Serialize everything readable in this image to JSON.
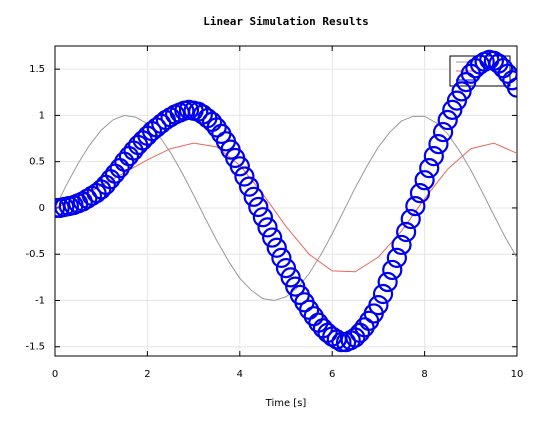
{
  "chart_data": {
    "type": "line",
    "title": "Linear Simulation Results",
    "x_label": "Time [s]",
    "xlim": [
      0,
      10
    ],
    "xticks": [
      0,
      2,
      4,
      6,
      8,
      10
    ],
    "ylim": [
      -1.6,
      1.75
    ],
    "yticks": [
      -1.5,
      -1,
      -0.5,
      0,
      0.5,
      1,
      1.5
    ],
    "grid": true,
    "series": [
      {
        "color": "#999999",
        "marker": "none",
        "x": [
          0,
          0.25,
          0.5,
          0.75,
          1,
          1.25,
          1.5,
          1.75,
          2,
          2.25,
          2.5,
          2.75,
          3,
          3.25,
          3.5,
          3.75,
          4,
          4.25,
          4.5,
          4.75,
          5,
          5.25,
          5.5,
          5.75,
          6,
          6.25,
          6.5,
          6.75,
          7,
          7.25,
          7.5,
          7.75,
          8,
          8.25,
          8.5,
          8.75,
          9,
          9.25,
          9.5,
          9.75,
          10
        ],
        "values": [
          0,
          0.25,
          0.48,
          0.68,
          0.84,
          0.95,
          1.0,
          0.98,
          0.91,
          0.78,
          0.6,
          0.38,
          0.14,
          -0.11,
          -0.35,
          -0.57,
          -0.76,
          -0.89,
          -0.98,
          -1.0,
          -0.96,
          -0.86,
          -0.71,
          -0.51,
          -0.28,
          -0.03,
          0.22,
          0.45,
          0.66,
          0.82,
          0.94,
          0.99,
          0.99,
          0.92,
          0.8,
          0.62,
          0.41,
          0.17,
          -0.08,
          -0.32,
          -0.54
        ]
      },
      {
        "color": "#e8675f",
        "marker": "none",
        "x": [
          0,
          0.5,
          1,
          1.5,
          2,
          2.5,
          3,
          3.5,
          4,
          4.5,
          5,
          5.5,
          6,
          6.5,
          7,
          7.5,
          8,
          8.5,
          9,
          9.5,
          10
        ],
        "values": [
          0,
          0.1,
          0.24,
          0.38,
          0.52,
          0.64,
          0.7,
          0.66,
          0.46,
          0.15,
          -0.2,
          -0.5,
          -0.68,
          -0.69,
          -0.53,
          -0.25,
          0.1,
          0.42,
          0.64,
          0.7,
          0.59
        ]
      },
      {
        "color": "#0000ee",
        "marker": "circle",
        "x": [
          0,
          0.1,
          0.2,
          0.3,
          0.4,
          0.5,
          0.6,
          0.7,
          0.8,
          0.9,
          1,
          1.1,
          1.2,
          1.3,
          1.4,
          1.5,
          1.6,
          1.7,
          1.8,
          1.9,
          2,
          2.1,
          2.2,
          2.3,
          2.4,
          2.5,
          2.6,
          2.7,
          2.8,
          2.9,
          3,
          3.1,
          3.2,
          3.3,
          3.4,
          3.5,
          3.6,
          3.7,
          3.8,
          3.9,
          4,
          4.1,
          4.2,
          4.3,
          4.4,
          4.5,
          4.6,
          4.7,
          4.8,
          4.9,
          5,
          5.1,
          5.2,
          5.3,
          5.4,
          5.5,
          5.6,
          5.7,
          5.8,
          5.9,
          6,
          6.1,
          6.2,
          6.3,
          6.4,
          6.5,
          6.6,
          6.7,
          6.8,
          6.9,
          7,
          7.1,
          7.2,
          7.3,
          7.4,
          7.5,
          7.6,
          7.7,
          7.8,
          7.9,
          8,
          8.1,
          8.2,
          8.3,
          8.4,
          8.5,
          8.6,
          8.7,
          8.8,
          8.9,
          9,
          9.1,
          9.2,
          9.3,
          9.4,
          9.5,
          9.6,
          9.7,
          9.8,
          9.9,
          10
        ],
        "values": [
          0,
          0,
          0.01,
          0.02,
          0.03,
          0.05,
          0.07,
          0.1,
          0.13,
          0.16,
          0.2,
          0.25,
          0.31,
          0.37,
          0.43,
          0.5,
          0.56,
          0.62,
          0.68,
          0.73,
          0.78,
          0.83,
          0.87,
          0.91,
          0.95,
          0.98,
          1.01,
          1.03,
          1.05,
          1.06,
          1.05,
          1.04,
          1.01,
          0.97,
          0.93,
          0.87,
          0.8,
          0.72,
          0.63,
          0.54,
          0.45,
          0.34,
          0.23,
          0.12,
          0.01,
          -0.1,
          -0.21,
          -0.32,
          -0.43,
          -0.54,
          -0.65,
          -0.75,
          -0.85,
          -0.94,
          -1.02,
          -1.1,
          -1.17,
          -1.24,
          -1.3,
          -1.35,
          -1.39,
          -1.42,
          -1.45,
          -1.45,
          -1.43,
          -1.4,
          -1.35,
          -1.29,
          -1.22,
          -1.14,
          -1.05,
          -0.93,
          -0.8,
          -0.67,
          -0.54,
          -0.4,
          -0.26,
          -0.12,
          0.02,
          0.16,
          0.3,
          0.43,
          0.56,
          0.69,
          0.82,
          0.95,
          1.06,
          1.16,
          1.26,
          1.36,
          1.45,
          1.51,
          1.55,
          1.58,
          1.6,
          1.59,
          1.56,
          1.51,
          1.45,
          1.38,
          1.3
        ]
      }
    ]
  }
}
